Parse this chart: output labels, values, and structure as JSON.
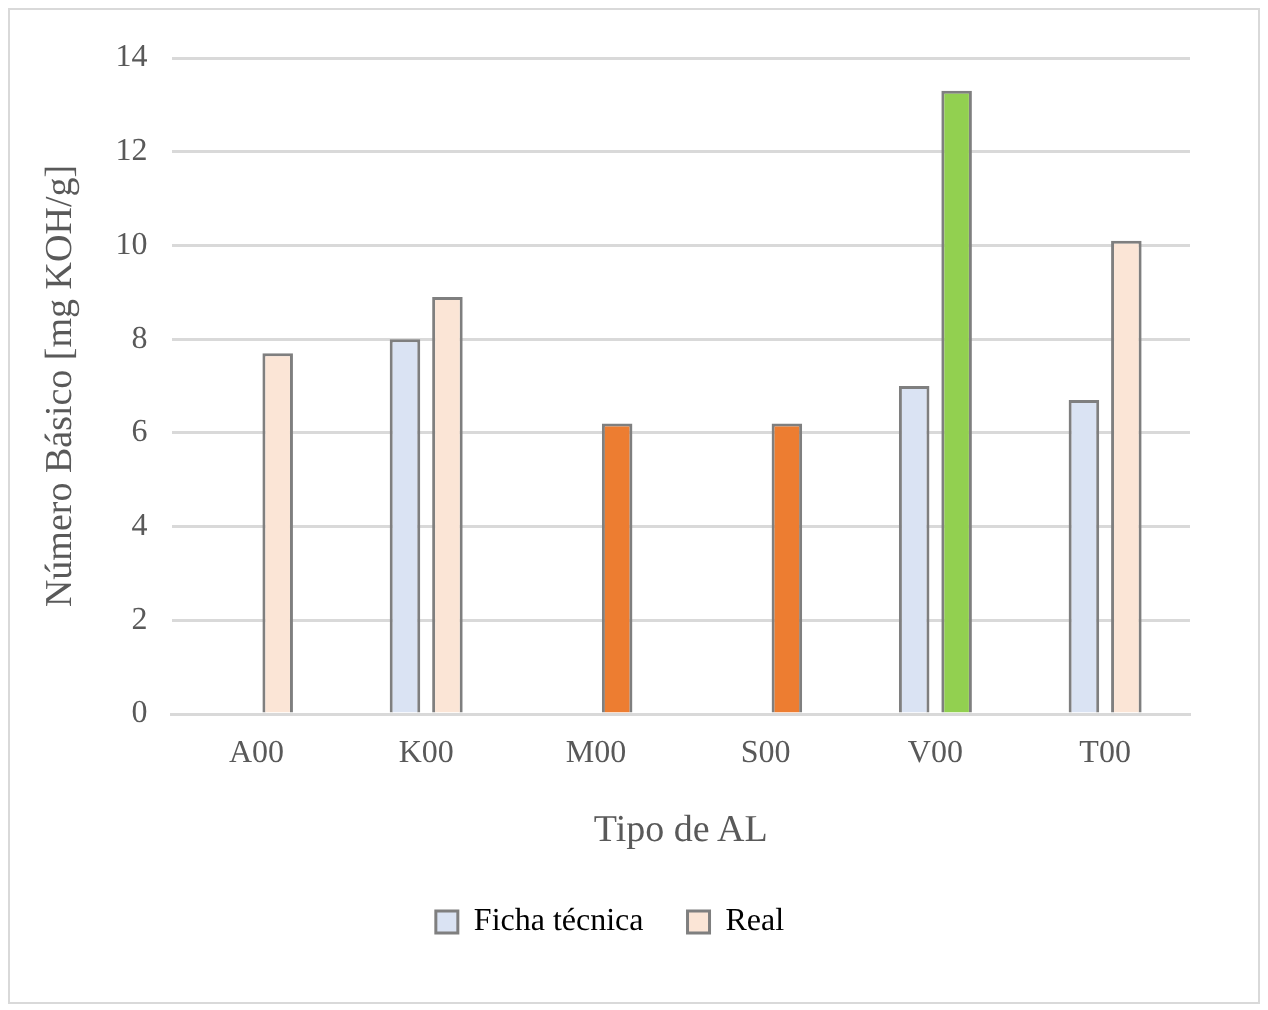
{
  "chart_data": {
    "type": "bar",
    "xlabel": "Tipo de AL",
    "ylabel": "Número Básico [mg KOH/g]",
    "categories": [
      "A00",
      "K00",
      "M00",
      "S00",
      "V00",
      "T00"
    ],
    "series": [
      {
        "name": "Ficha técnica",
        "color": "#dae3f3",
        "values": [
          null,
          8.0,
          null,
          null,
          7.0,
          6.7
        ]
      },
      {
        "name": "Real",
        "color": "#fbe5d6",
        "colors": [
          "#fbe5d6",
          "#fbe5d6",
          "#ed7d31",
          "#ed7d31",
          "#92d050",
          "#fbe5d6"
        ],
        "values": [
          7.7,
          8.9,
          6.2,
          6.2,
          13.3,
          10.1
        ]
      }
    ],
    "ylim": [
      0,
      14
    ],
    "yticks": [
      0,
      2,
      4,
      6,
      8,
      10,
      12,
      14
    ],
    "grid": "y",
    "legend": "bottom"
  }
}
